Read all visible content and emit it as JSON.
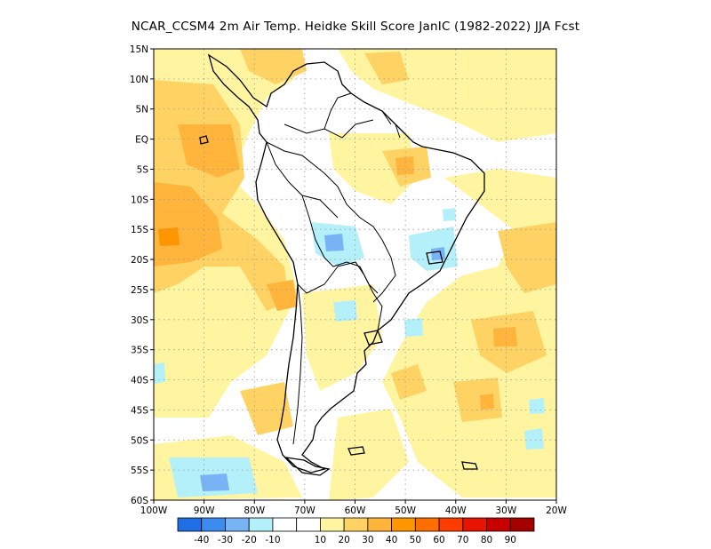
{
  "title": "NCAR_CCSM4  2m Air Temp. Heidke Skill Score JanIC (1982-2022) JJA Fcst",
  "map": {
    "lat_labels": [
      "15N",
      "10N",
      "5N",
      "EQ",
      "5S",
      "10S",
      "15S",
      "20S",
      "25S",
      "30S",
      "35S",
      "40S",
      "45S",
      "50S",
      "55S",
      "60S"
    ],
    "lat_values": [
      15,
      10,
      5,
      0,
      -5,
      -10,
      -15,
      -20,
      -25,
      -30,
      -35,
      -40,
      -45,
      -50,
      -55,
      -60
    ],
    "lon_labels": [
      "100W",
      "90W",
      "80W",
      "70W",
      "60W",
      "50W",
      "40W",
      "30W",
      "20W"
    ],
    "lon_values": [
      -100,
      -90,
      -80,
      -70,
      -60,
      -50,
      -40,
      -30,
      -20
    ],
    "lon_range": [
      -100,
      -20
    ],
    "lat_range": [
      -60,
      15
    ],
    "gridlines": true
  },
  "colorbar": {
    "colors": [
      "#1e6ee6",
      "#3c8cf0",
      "#78b4f5",
      "#b4f0fa",
      "#ffffff",
      "#ffffff",
      "#fff5a0",
      "#ffd264",
      "#ffb43c",
      "#ff9600",
      "#ff6e00",
      "#ff3c00",
      "#e61400",
      "#c80000",
      "#a50000"
    ],
    "labels": [
      "-40",
      "-30",
      "-20",
      "-10",
      "10",
      "20",
      "30",
      "40",
      "50",
      "60",
      "70",
      "80",
      "90"
    ]
  },
  "palette": {
    "light_yellow": "#fff5a0",
    "yellow_orange": "#ffd264",
    "orange": "#ffb43c",
    "dark_orange": "#ff9600",
    "light_blue": "#b4f0fa",
    "mid_blue": "#78b4f5",
    "coast": "#000000"
  }
}
